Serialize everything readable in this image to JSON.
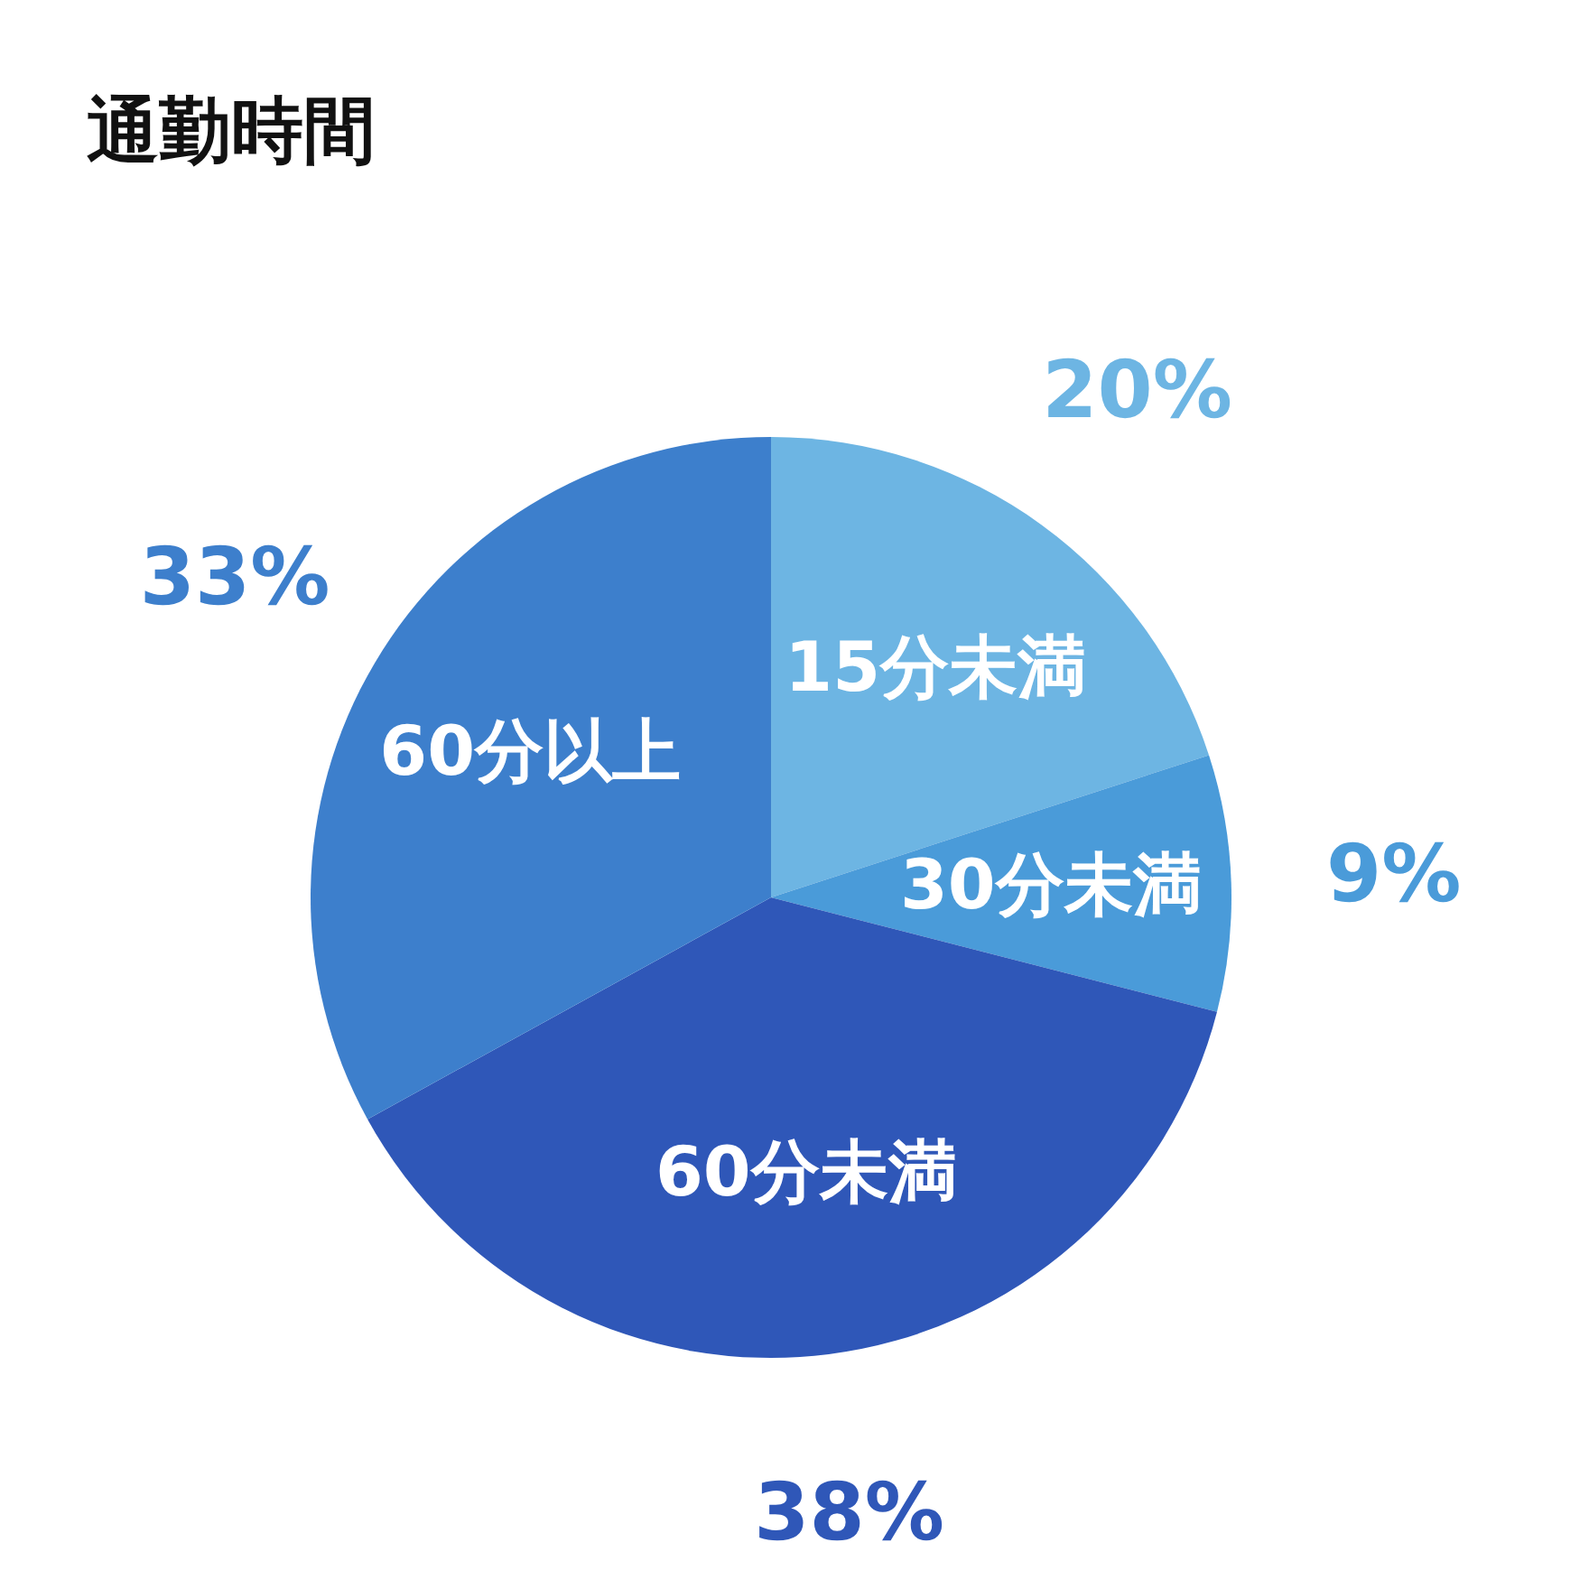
{
  "chart_data": {
    "type": "pie",
    "title": "通勤時間",
    "categories": [
      "15分未満",
      "30分未満",
      "60分未満",
      "60分以上"
    ],
    "values": [
      20,
      9,
      38,
      33
    ],
    "colors": [
      "#6db5e3",
      "#4a9bd9",
      "#2f57b8",
      "#3d7fcc"
    ],
    "value_labels": [
      "20%",
      "9%",
      "38%",
      "33%"
    ]
  }
}
